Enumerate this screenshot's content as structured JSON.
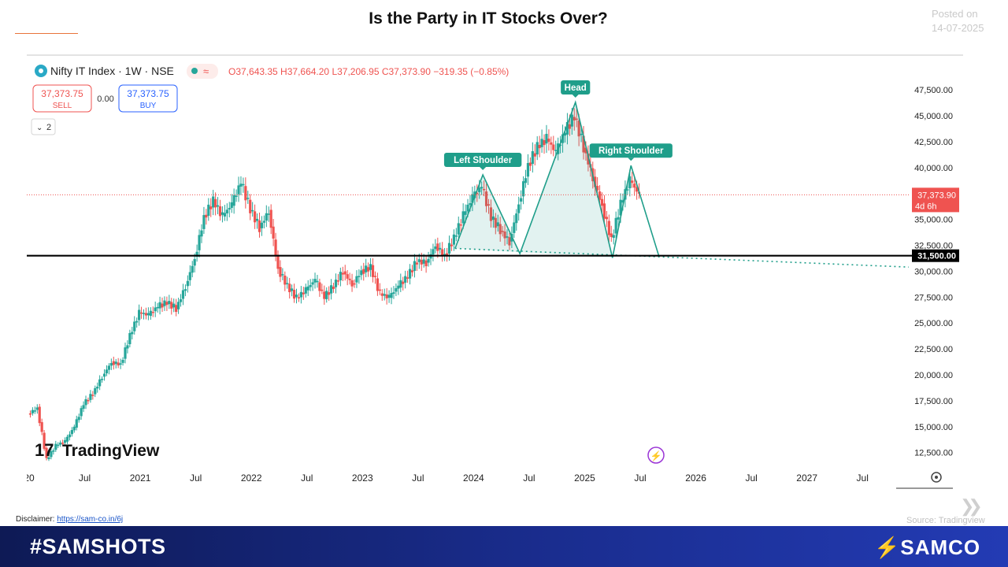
{
  "page": {
    "title": "Is the Party in IT Stocks Over?",
    "posted_label": "Posted on",
    "posted_date": "14-07-2025",
    "disclaimer_label": "Disclaimer:",
    "disclaimer_link": "https://sam-co.in/6j",
    "source": "Source: Tradingview",
    "hashtag": "#SAMSHOTS",
    "brand": "SAMCO"
  },
  "toolbar": {
    "symbol": "Nifty IT Index · 1W · NSE",
    "ohlc_text": "O37,643.35 H37,664.20 L37,206.95 C37,373.90 −319.35 (−0.85%)",
    "sell_price": "37,373.75",
    "sell_label": "SELL",
    "spread": "0.00",
    "buy_price": "37,373.75",
    "buy_label": "BUY",
    "indicator_count": "2",
    "watermark": "TradingView"
  },
  "chart_data": {
    "type": "candlestick",
    "title": "Nifty IT Index · 1W · NSE",
    "ylim": [
      10500,
      48500
    ],
    "y_ticks": [
      "12,500.00",
      "15,000.00",
      "17,500.00",
      "20,000.00",
      "22,500.00",
      "25,000.00",
      "27,500.00",
      "30,000.00",
      "32,500.00",
      "35,000.00",
      "37,500.00",
      "40,000.00",
      "42,500.00",
      "45,000.00",
      "47,500.00"
    ],
    "x_ticks": [
      "20",
      "Jul",
      "2021",
      "Jul",
      "2022",
      "Jul",
      "2023",
      "Jul",
      "2024",
      "Jul",
      "2025",
      "Jul",
      "2026",
      "Jul",
      "2027",
      "Jul"
    ],
    "x_range": [
      "2020-01",
      "2027-12"
    ],
    "last_price_label": "37,373.90",
    "countdown_label": "4d 6h",
    "support_label": "31,500.00",
    "support_level": 31500,
    "series": [
      {
        "values": [
          {
            "t": "2020-01",
            "c": 16200
          },
          {
            "t": "2020-02",
            "c": 16800
          },
          {
            "t": "2020-03",
            "c": 11800
          },
          {
            "t": "2020-04",
            "c": 13200
          },
          {
            "t": "2020-05",
            "c": 13600
          },
          {
            "t": "2020-06",
            "c": 15000
          },
          {
            "t": "2020-07",
            "c": 17200
          },
          {
            "t": "2020-08",
            "c": 18200
          },
          {
            "t": "2020-09",
            "c": 19800
          },
          {
            "t": "2020-10",
            "c": 21200
          },
          {
            "t": "2020-11",
            "c": 21000
          },
          {
            "t": "2020-12",
            "c": 23800
          },
          {
            "t": "2021-01",
            "c": 26000
          },
          {
            "t": "2021-02",
            "c": 25800
          },
          {
            "t": "2021-03",
            "c": 26600
          },
          {
            "t": "2021-04",
            "c": 27000
          },
          {
            "t": "2021-05",
            "c": 26400
          },
          {
            "t": "2021-06",
            "c": 28500
          },
          {
            "t": "2021-07",
            "c": 31200
          },
          {
            "t": "2021-08",
            "c": 35200
          },
          {
            "t": "2021-09",
            "c": 36800
          },
          {
            "t": "2021-10",
            "c": 35300
          },
          {
            "t": "2021-11",
            "c": 36500
          },
          {
            "t": "2021-12",
            "c": 38600
          },
          {
            "t": "2022-01",
            "c": 36000
          },
          {
            "t": "2022-02",
            "c": 34200
          },
          {
            "t": "2022-03",
            "c": 35800
          },
          {
            "t": "2022-04",
            "c": 30200
          },
          {
            "t": "2022-05",
            "c": 28600
          },
          {
            "t": "2022-06",
            "c": 27400
          },
          {
            "t": "2022-07",
            "c": 28200
          },
          {
            "t": "2022-08",
            "c": 29200
          },
          {
            "t": "2022-09",
            "c": 27500
          },
          {
            "t": "2022-10",
            "c": 28600
          },
          {
            "t": "2022-11",
            "c": 30000
          },
          {
            "t": "2022-12",
            "c": 28700
          },
          {
            "t": "2023-01",
            "c": 30000
          },
          {
            "t": "2023-02",
            "c": 30400
          },
          {
            "t": "2023-03",
            "c": 27800
          },
          {
            "t": "2023-04",
            "c": 27500
          },
          {
            "t": "2023-05",
            "c": 28600
          },
          {
            "t": "2023-06",
            "c": 29500
          },
          {
            "t": "2023-07",
            "c": 31000
          },
          {
            "t": "2023-08",
            "c": 30800
          },
          {
            "t": "2023-09",
            "c": 32500
          },
          {
            "t": "2023-10",
            "c": 31500
          },
          {
            "t": "2023-11",
            "c": 33200
          },
          {
            "t": "2023-12",
            "c": 35400
          },
          {
            "t": "2024-01",
            "c": 37200
          },
          {
            "t": "2024-02",
            "c": 38200
          },
          {
            "t": "2024-03",
            "c": 35200
          },
          {
            "t": "2024-04",
            "c": 34000
          },
          {
            "t": "2024-05",
            "c": 32800
          },
          {
            "t": "2024-06",
            "c": 36500
          },
          {
            "t": "2024-07",
            "c": 40200
          },
          {
            "t": "2024-08",
            "c": 42000
          },
          {
            "t": "2024-09",
            "c": 42800
          },
          {
            "t": "2024-10",
            "c": 41500
          },
          {
            "t": "2024-11",
            "c": 43500
          },
          {
            "t": "2024-12",
            "c": 45000
          },
          {
            "t": "2025-01",
            "c": 42000
          },
          {
            "t": "2025-02",
            "c": 39000
          },
          {
            "t": "2025-03",
            "c": 36300
          },
          {
            "t": "2025-04",
            "c": 33000
          },
          {
            "t": "2025-05",
            "c": 36500
          },
          {
            "t": "2025-06",
            "c": 38800
          },
          {
            "t": "2025-07",
            "c": 37374
          }
        ]
      }
    ],
    "annotations": [
      {
        "label": "Left Shoulder",
        "t": "2024-02",
        "v": 39300
      },
      {
        "label": "Head",
        "t": "2024-12",
        "v": 46300
      },
      {
        "label": "Right Shoulder",
        "t": "2025-06",
        "v": 40200
      }
    ],
    "pattern_points": [
      {
        "t": "2023-11",
        "v": 32200
      },
      {
        "t": "2024-02",
        "v": 39300
      },
      {
        "t": "2024-06",
        "v": 31700
      },
      {
        "t": "2024-12",
        "v": 46300
      },
      {
        "t": "2025-04",
        "v": 31300
      },
      {
        "t": "2025-06",
        "v": 40200
      },
      {
        "t": "2025-09",
        "v": 31500
      }
    ],
    "neckline": [
      {
        "t": "2023-11",
        "v": 32200
      },
      {
        "t": "2027-12",
        "v": 30400
      }
    ],
    "colors": {
      "up": "#26a69a",
      "down": "#ef5350",
      "pattern": "#1f9e8a",
      "support": "#000000",
      "price_line": "#ef5350"
    },
    "grid": false,
    "legend": "none"
  }
}
